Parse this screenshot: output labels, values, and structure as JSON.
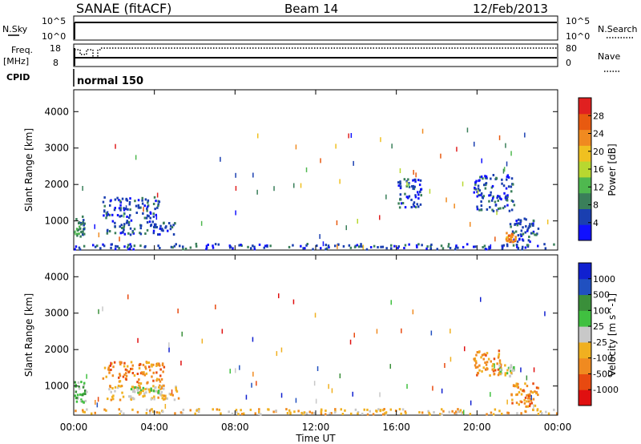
{
  "header": {
    "title": "SANAE (fitACF)",
    "beam": "Beam 14",
    "date": "12/Feb/2013"
  },
  "top_panels": {
    "nsky_label": "N.Sky",
    "nsky_ticks": [
      "10^5",
      "10^0"
    ],
    "nsearch_label": "N.Search",
    "nsearch_ticks": [
      "10^5",
      "10^0"
    ],
    "freq_label": "Freq.",
    "freq_unit": "[MHz]",
    "freq_ticks": [
      "18",
      "8"
    ],
    "nave_label": "Nave",
    "nave_ticks": [
      "80",
      "0"
    ],
    "cpid_label": "CPID",
    "cpid_value": "normal 150"
  },
  "chart_data": [
    {
      "type": "heatmap",
      "panel": "power",
      "ylabel": "Slant Range [km]",
      "xlabel": "",
      "x_ticks": [
        "00:00",
        "04:00",
        "08:00",
        "12:00",
        "16:00",
        "20:00",
        "00:00"
      ],
      "y_ticks": [
        1000,
        2000,
        3000,
        4000
      ],
      "ylim": [
        200,
        4600
      ],
      "xlim_hours": [
        0,
        24
      ],
      "colorbar": {
        "label": "Power [dB]",
        "ticks": [
          "28",
          "24",
          "20",
          "16",
          "12",
          "8",
          "4"
        ],
        "colors": [
          "#1010ff",
          "#1a3fb0",
          "#3a7f5a",
          "#4fb84f",
          "#b8d830",
          "#f0c020",
          "#f08a20",
          "#e85a10",
          "#e02020"
        ]
      },
      "features": [
        {
          "t0": 0.0,
          "t1": 0.5,
          "r0": 550,
          "r1": 1150,
          "level": 2
        },
        {
          "t0": 1.6,
          "t1": 5.0,
          "r0": 650,
          "r1": 1050,
          "level": 1
        },
        {
          "t0": 1.4,
          "t1": 4.2,
          "r0": 1100,
          "r1": 1700,
          "level": 1
        },
        {
          "t0": 0.0,
          "t1": 24.0,
          "r0": 250,
          "r1": 400,
          "level": 1
        },
        {
          "t0": 19.8,
          "t1": 21.8,
          "r0": 1300,
          "r1": 2300,
          "level": 1
        },
        {
          "t0": 21.6,
          "t1": 23.0,
          "r0": 450,
          "r1": 1100,
          "level": 1
        },
        {
          "t0": 16.0,
          "t1": 17.2,
          "r0": 1400,
          "r1": 2200,
          "level": 1
        },
        {
          "t0": 21.4,
          "t1": 21.9,
          "r0": 450,
          "r1": 700,
          "level": 6
        }
      ]
    },
    {
      "type": "heatmap",
      "panel": "velocity",
      "ylabel": "Slant Range [km]",
      "xlabel": "Time UT",
      "x_ticks": [
        "00:00",
        "04:00",
        "08:00",
        "12:00",
        "16:00",
        "20:00",
        "00:00"
      ],
      "y_ticks": [
        1000,
        2000,
        3000,
        4000
      ],
      "ylim": [
        200,
        4600
      ],
      "xlim_hours": [
        0,
        24
      ],
      "colorbar": {
        "label": "Velocity [m s^-1]",
        "ticks": [
          "1000",
          "500",
          "100",
          "25",
          "-25",
          "-100",
          "-500",
          "-1000"
        ],
        "colors": [
          "#e01010",
          "#e84a10",
          "#f08a20",
          "#f0b020",
          "#c8c8c8",
          "#40c040",
          "#3a8f3a",
          "#2050c0",
          "#1020d0"
        ]
      },
      "features": [
        {
          "t0": 0.0,
          "t1": 0.6,
          "r0": 550,
          "r1": 1150,
          "level": 5
        },
        {
          "t0": 1.6,
          "t1": 5.2,
          "r0": 650,
          "r1": 1050,
          "level": 3
        },
        {
          "t0": 2.8,
          "t1": 4.2,
          "r0": 800,
          "r1": 1000,
          "level": 4
        },
        {
          "t0": 1.4,
          "t1": 4.5,
          "r0": 1100,
          "r1": 1700,
          "level": 2
        },
        {
          "t0": 0.0,
          "t1": 24.0,
          "r0": 250,
          "r1": 400,
          "level": 3
        },
        {
          "t0": 19.8,
          "t1": 21.2,
          "r0": 1300,
          "r1": 2000,
          "level": 2
        },
        {
          "t0": 21.0,
          "t1": 21.8,
          "r0": 1300,
          "r1": 1600,
          "level": 4
        },
        {
          "t0": 21.6,
          "t1": 23.0,
          "r0": 450,
          "r1": 1100,
          "level": 2
        }
      ]
    }
  ]
}
